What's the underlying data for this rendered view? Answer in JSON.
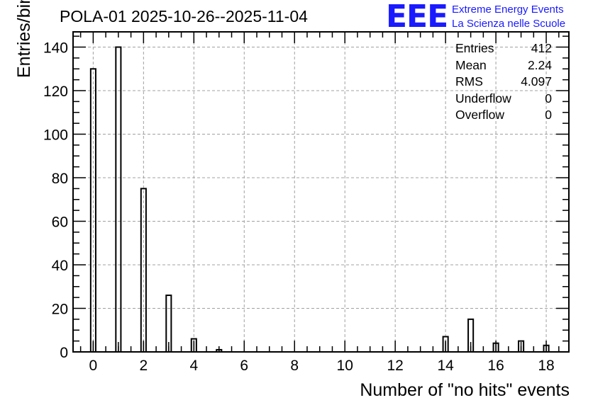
{
  "chart_data": {
    "type": "bar",
    "title": "POLA-01 2025-10-26--2025-11-04",
    "xlabel": "Number of \"no hits\" events",
    "ylabel": "Entries/bin",
    "xlim": [
      -0.8,
      18.9
    ],
    "ylim": [
      0,
      147
    ],
    "grid": true,
    "x": [
      0,
      1,
      2,
      3,
      4,
      5,
      14,
      15,
      16,
      17,
      18
    ],
    "values": [
      130,
      140,
      75,
      26,
      6,
      1,
      7,
      15,
      4,
      5,
      3
    ],
    "xticks": [
      0,
      2,
      4,
      6,
      8,
      10,
      12,
      14,
      16,
      18
    ],
    "yticks": [
      0,
      20,
      40,
      60,
      80,
      100,
      120,
      140
    ],
    "stats": [
      {
        "label": "Entries",
        "value": "412"
      },
      {
        "label": "Mean",
        "value": "2.24"
      },
      {
        "label": "RMS",
        "value": "4.097"
      },
      {
        "label": "Underflow",
        "value": "0"
      },
      {
        "label": "Overflow",
        "value": "0"
      }
    ]
  },
  "logo": {
    "mark": "EEE",
    "line1": "Extreme Energy Events",
    "line2": "La Scienza nelle Scuole"
  },
  "colors": {
    "logo": "#1a1aff",
    "grid": "#a0a0a0",
    "bar": "#000000"
  }
}
